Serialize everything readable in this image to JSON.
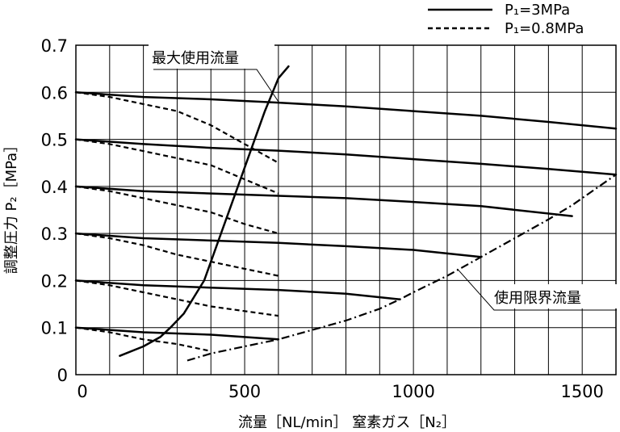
{
  "chart_data": {
    "type": "line",
    "title": "",
    "xlabel": "流量［NL/min］ 窒素ガス［N₂］",
    "ylabel": "調整圧力 P₂［MPa］",
    "xlim": [
      0,
      1600
    ],
    "ylim": [
      0,
      0.7
    ],
    "x_ticks": [
      "0",
      "500",
      "1000",
      "1500"
    ],
    "y_ticks": [
      "0",
      "0.1",
      "0.2",
      "0.3",
      "0.4",
      "0.5",
      "0.6",
      "0.7"
    ],
    "grid": true,
    "legend": [
      {
        "label": "P₁=3MPa",
        "style": "solid"
      },
      {
        "label": "P₁=0.8MPa",
        "style": "dashed"
      }
    ],
    "series": [
      {
        "group": "P₁=3MPa",
        "style": "solid",
        "x": [
          0,
          200,
          400,
          600,
          800,
          1000,
          1200,
          1400,
          1600
        ],
        "y": [
          0.6,
          0.59,
          0.585,
          0.578,
          0.57,
          0.56,
          0.55,
          0.537,
          0.523
        ]
      },
      {
        "group": "P₁=3MPa",
        "style": "solid",
        "x": [
          0,
          200,
          400,
          600,
          800,
          1000,
          1200,
          1400,
          1600
        ],
        "y": [
          0.5,
          0.49,
          0.482,
          0.476,
          0.468,
          0.458,
          0.448,
          0.437,
          0.425
        ]
      },
      {
        "group": "P₁=3MPa",
        "style": "solid",
        "x": [
          0,
          200,
          400,
          600,
          800,
          1000,
          1200,
          1470
        ],
        "y": [
          0.4,
          0.39,
          0.385,
          0.38,
          0.375,
          0.367,
          0.358,
          0.337
        ]
      },
      {
        "group": "P₁=3MPa",
        "style": "solid",
        "x": [
          0,
          200,
          400,
          600,
          800,
          1000,
          1200
        ],
        "y": [
          0.3,
          0.29,
          0.285,
          0.28,
          0.273,
          0.265,
          0.25
        ]
      },
      {
        "group": "P₁=3MPa",
        "style": "solid",
        "x": [
          0,
          200,
          400,
          600,
          800,
          960
        ],
        "y": [
          0.2,
          0.19,
          0.185,
          0.18,
          0.172,
          0.16
        ]
      },
      {
        "group": "P₁=3MPa",
        "style": "solid",
        "x": [
          0,
          200,
          400,
          600
        ],
        "y": [
          0.1,
          0.09,
          0.085,
          0.075
        ]
      },
      {
        "group": "P₁=0.8MPa",
        "style": "dashed",
        "x": [
          0,
          100,
          200,
          300,
          400,
          500,
          600
        ],
        "y": [
          0.6,
          0.59,
          0.575,
          0.56,
          0.53,
          0.49,
          0.45
        ]
      },
      {
        "group": "P₁=0.8MPa",
        "style": "dashed",
        "x": [
          0,
          100,
          200,
          300,
          400,
          500,
          600
        ],
        "y": [
          0.5,
          0.49,
          0.475,
          0.46,
          0.445,
          0.415,
          0.385
        ]
      },
      {
        "group": "P₁=0.8MPa",
        "style": "dashed",
        "x": [
          0,
          100,
          200,
          300,
          400,
          500,
          600
        ],
        "y": [
          0.4,
          0.39,
          0.375,
          0.36,
          0.345,
          0.32,
          0.3
        ]
      },
      {
        "group": "P₁=0.8MPa",
        "style": "dashed",
        "x": [
          0,
          100,
          200,
          300,
          400,
          500,
          600
        ],
        "y": [
          0.3,
          0.29,
          0.275,
          0.255,
          0.24,
          0.225,
          0.21
        ]
      },
      {
        "group": "P₁=0.8MPa",
        "style": "dashed",
        "x": [
          0,
          100,
          200,
          300,
          400,
          500,
          600
        ],
        "y": [
          0.2,
          0.19,
          0.175,
          0.16,
          0.145,
          0.135,
          0.125
        ]
      },
      {
        "group": "P₁=0.8MPa",
        "style": "dashed",
        "x": [
          0,
          100,
          200,
          300,
          400
        ],
        "y": [
          0.1,
          0.09,
          0.075,
          0.065,
          0.05
        ]
      },
      {
        "name": "最大使用流量",
        "style": "solid",
        "x": [
          130,
          200,
          250,
          280,
          320,
          380,
          430,
          480,
          520,
          560,
          600,
          630
        ],
        "y": [
          0.04,
          0.06,
          0.08,
          0.1,
          0.13,
          0.2,
          0.3,
          0.4,
          0.48,
          0.56,
          0.63,
          0.655
        ]
      },
      {
        "name": "使用限界流量",
        "style": "dashdot",
        "x": [
          330,
          400,
          500,
          600,
          700,
          800,
          900,
          960,
          1000,
          1100,
          1200,
          1300,
          1400,
          1470,
          1500,
          1600
        ],
        "y": [
          0.03,
          0.045,
          0.06,
          0.075,
          0.095,
          0.115,
          0.14,
          0.16,
          0.175,
          0.21,
          0.25,
          0.29,
          0.33,
          0.36,
          0.375,
          0.425
        ]
      }
    ],
    "annotations": [
      {
        "text": "最大使用流量",
        "target_x": 600,
        "target_y": 0.58
      },
      {
        "text": "使用限界流量",
        "target_x": 1130,
        "target_y": 0.225
      }
    ]
  }
}
